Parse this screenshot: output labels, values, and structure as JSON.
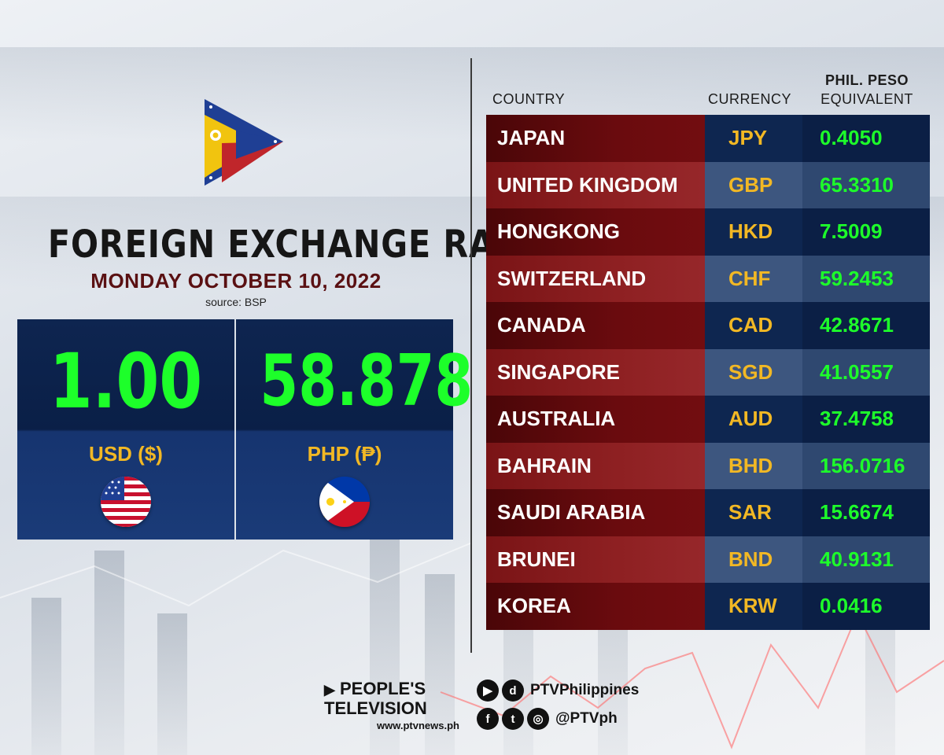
{
  "title": "FOREIGN EXCHANGE RATE",
  "date": "MONDAY OCTOBER 10, 2022",
  "source": "source: BSP",
  "base_rate": {
    "usd_value": "1.00",
    "usd_label": "USD ($)",
    "php_value": "58.878",
    "php_label": "PHP (₱)"
  },
  "table": {
    "header_country": "COUNTRY",
    "header_currency": "CURRENCY",
    "header_peso_line1": "PHIL. PESO",
    "header_peso_line2": "EQUIVALENT",
    "rows": [
      {
        "country": "JAPAN",
        "currency": "JPY",
        "value": "0.4050"
      },
      {
        "country": "UNITED KINGDOM",
        "currency": "GBP",
        "value": "65.3310"
      },
      {
        "country": "HONGKONG",
        "currency": "HKD",
        "value": "7.5009"
      },
      {
        "country": "SWITZERLAND",
        "currency": "CHF",
        "value": "59.2453"
      },
      {
        "country": "CANADA",
        "currency": "CAD",
        "value": "42.8671"
      },
      {
        "country": "SINGAPORE",
        "currency": "SGD",
        "value": "41.0557"
      },
      {
        "country": "AUSTRALIA",
        "currency": "AUD",
        "value": "37.4758"
      },
      {
        "country": "BAHRAIN",
        "currency": "BHD",
        "value": "156.0716"
      },
      {
        "country": "SAUDI ARABIA",
        "currency": "SAR",
        "value": "15.6674"
      },
      {
        "country": "BRUNEI",
        "currency": "BND",
        "value": "40.9131"
      },
      {
        "country": "KOREA",
        "currency": "KRW",
        "value": "0.0416"
      }
    ]
  },
  "footer": {
    "brand_line1": "PEOPLE'S",
    "brand_line2": "TELEVISION",
    "brand_url": "www.ptvnews.ph",
    "handle_1": "PTVPhilippines",
    "handle_2": "@PTVph",
    "icons_row1": [
      "youtube-icon",
      "dailymotion-icon"
    ],
    "icons_row2": [
      "facebook-icon",
      "twitter-icon",
      "instagram-icon"
    ]
  },
  "colors": {
    "value_green": "#1dff2a",
    "currency_gold": "#f2b824",
    "date_maroon": "#5a1012",
    "navy": "#0e2650",
    "maroon": "#6a0b0e"
  }
}
